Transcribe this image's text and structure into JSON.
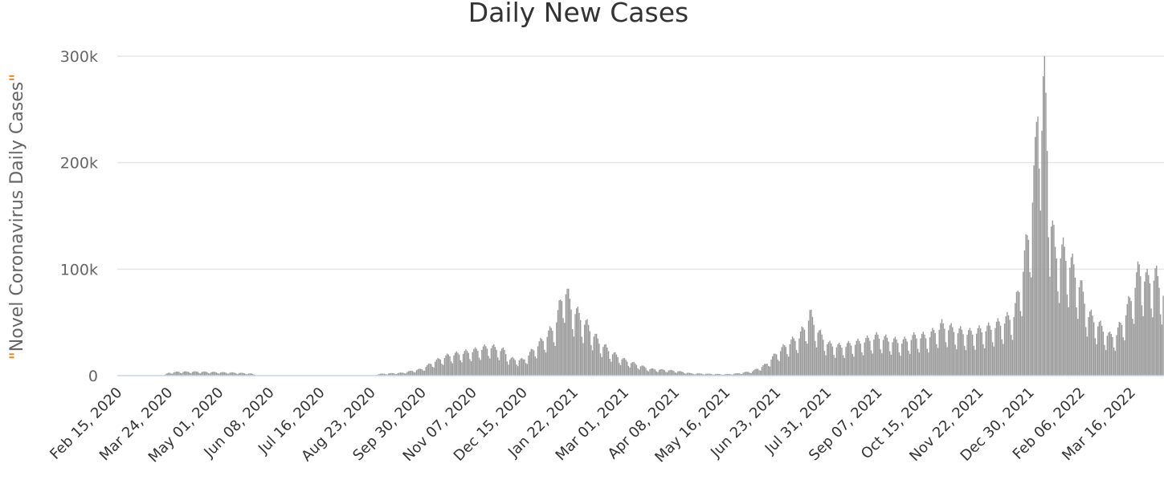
{
  "chart_data": {
    "type": "bar",
    "title": "Daily New Cases",
    "ylabel": "Novel Coronavirus Daily Cases",
    "ylabel_quote_color": "#e67e22",
    "bar_color": "#999999",
    "grid": true,
    "legend": "none",
    "ylim": [
      0,
      300000
    ],
    "y_ticks": [
      {
        "value": 0,
        "label": "0"
      },
      {
        "value": 100000,
        "label": "100k"
      },
      {
        "value": 200000,
        "label": "200k"
      },
      {
        "value": 300000,
        "label": "300k"
      }
    ],
    "x_ticks": [
      "Feb 15, 2020",
      "Mar 24, 2020",
      "May 01, 2020",
      "Jun 08, 2020",
      "Jul 16, 2020",
      "Aug 23, 2020",
      "Sep 30, 2020",
      "Nov 07, 2020",
      "Dec 15, 2020",
      "Jan 22, 2021",
      "Mar 01, 2021",
      "Apr 08, 2021",
      "May 16, 2021",
      "Jun 23, 2021",
      "Jul 31, 2021",
      "Sep 07, 2021",
      "Oct 15, 2021",
      "Nov 22, 2021",
      "Dec 30, 2021",
      "Feb 06, 2022",
      "Mar 16, 2022"
    ],
    "x_start": "2020-02-15",
    "x_end": "2022-04-09",
    "anchors": [
      [
        "2020-02-15",
        0
      ],
      [
        "2020-03-20",
        0
      ],
      [
        "2020-03-24",
        2500
      ],
      [
        "2020-04-01",
        3500
      ],
      [
        "2020-04-15",
        3500
      ],
      [
        "2020-05-01",
        3000
      ],
      [
        "2020-05-15",
        2500
      ],
      [
        "2020-05-25",
        1800
      ],
      [
        "2020-05-30",
        0
      ],
      [
        "2020-08-25",
        0
      ],
      [
        "2020-08-28",
        1500
      ],
      [
        "2020-09-15",
        2500
      ],
      [
        "2020-09-30",
        6000
      ],
      [
        "2020-10-10",
        13000
      ],
      [
        "2020-10-20",
        18000
      ],
      [
        "2020-11-07",
        22000
      ],
      [
        "2020-11-20",
        26000
      ],
      [
        "2020-12-01",
        22000
      ],
      [
        "2020-12-05",
        15000
      ],
      [
        "2020-12-15",
        14000
      ],
      [
        "2020-12-20",
        20000
      ],
      [
        "2021-01-01",
        35000
      ],
      [
        "2021-01-08",
        45000
      ],
      [
        "2021-01-12",
        65000
      ],
      [
        "2021-01-15",
        80000
      ],
      [
        "2021-01-20",
        62000
      ],
      [
        "2021-01-25",
        55000
      ],
      [
        "2021-02-01",
        45000
      ],
      [
        "2021-02-10",
        30000
      ],
      [
        "2021-02-20",
        20000
      ],
      [
        "2021-03-01",
        14000
      ],
      [
        "2021-03-10",
        10000
      ],
      [
        "2021-03-20",
        6000
      ],
      [
        "2021-04-01",
        5000
      ],
      [
        "2021-04-10",
        4000
      ],
      [
        "2021-04-20",
        2000
      ],
      [
        "2021-05-16",
        1200
      ],
      [
        "2021-05-25",
        2000
      ],
      [
        "2021-06-05",
        4000
      ],
      [
        "2021-06-15",
        10000
      ],
      [
        "2021-06-23",
        20000
      ],
      [
        "2021-07-01",
        28000
      ],
      [
        "2021-07-10",
        35000
      ],
      [
        "2021-07-15",
        45000
      ],
      [
        "2021-07-18",
        55000
      ],
      [
        "2021-07-25",
        38000
      ],
      [
        "2021-08-01",
        28000
      ],
      [
        "2021-08-10",
        26000
      ],
      [
        "2021-08-25",
        30000
      ],
      [
        "2021-09-07",
        35000
      ],
      [
        "2021-09-15",
        32000
      ],
      [
        "2021-09-25",
        30000
      ],
      [
        "2021-10-05",
        35000
      ],
      [
        "2021-10-15",
        35000
      ],
      [
        "2021-10-25",
        45000
      ],
      [
        "2021-11-05",
        40000
      ],
      [
        "2021-11-15",
        38000
      ],
      [
        "2021-11-22",
        40000
      ],
      [
        "2021-12-01",
        43000
      ],
      [
        "2021-12-10",
        48000
      ],
      [
        "2021-12-18",
        55000
      ],
      [
        "2021-12-24",
        90000
      ],
      [
        "2021-12-30",
        135000
      ],
      [
        "2022-01-03",
        190000
      ],
      [
        "2022-01-06",
        270000
      ],
      [
        "2022-01-08",
        230000
      ],
      [
        "2022-01-10",
        272000
      ],
      [
        "2022-01-14",
        150000
      ],
      [
        "2022-01-18",
        110000
      ],
      [
        "2022-01-25",
        110000
      ],
      [
        "2022-02-01",
        95000
      ],
      [
        "2022-02-06",
        80000
      ],
      [
        "2022-02-12",
        55000
      ],
      [
        "2022-02-20",
        45000
      ],
      [
        "2022-02-28",
        35000
      ],
      [
        "2022-03-05",
        38000
      ],
      [
        "2022-03-10",
        50000
      ],
      [
        "2022-03-16",
        70000
      ],
      [
        "2022-03-22",
        95000
      ],
      [
        "2022-03-28",
        85000
      ],
      [
        "2022-04-03",
        90000
      ],
      [
        "2022-04-09",
        75000
      ]
    ]
  }
}
